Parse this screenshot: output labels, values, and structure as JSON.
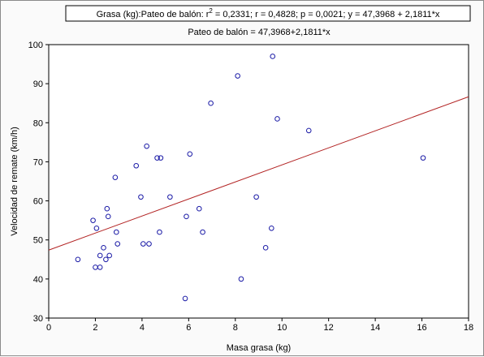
{
  "chart_data": {
    "type": "scatter",
    "legend_box": {
      "prefix": "Grasa (kg):Pateo de balón:  r",
      "sup": "2",
      "suffix": " = 0,2331;  r = 0,4828; p = 0,0021;  y = 47,3968 + 2,1811*x"
    },
    "title": "Pateo de balón = 47,3968+2,1811*x",
    "xlabel": "Masa grasa (kg)",
    "ylabel": "Velocidad de remate (km/h)",
    "xlim": [
      0,
      18
    ],
    "ylim": [
      30,
      100
    ],
    "xticks": [
      0,
      2,
      4,
      6,
      8,
      10,
      12,
      14,
      16,
      18
    ],
    "yticks": [
      30,
      40,
      50,
      60,
      70,
      80,
      90,
      100
    ],
    "grid": false,
    "regression": {
      "intercept": 47.3968,
      "slope": 2.1811
    },
    "colors": {
      "points": "#1a1aa6",
      "line": "#b22222",
      "axes": "#000000"
    },
    "points": [
      {
        "x": 1.25,
        "y": 45
      },
      {
        "x": 1.9,
        "y": 55
      },
      {
        "x": 2.0,
        "y": 43
      },
      {
        "x": 2.05,
        "y": 53
      },
      {
        "x": 2.2,
        "y": 46
      },
      {
        "x": 2.2,
        "y": 43
      },
      {
        "x": 2.35,
        "y": 48
      },
      {
        "x": 2.45,
        "y": 45
      },
      {
        "x": 2.5,
        "y": 58
      },
      {
        "x": 2.55,
        "y": 56
      },
      {
        "x": 2.6,
        "y": 46
      },
      {
        "x": 2.85,
        "y": 66
      },
      {
        "x": 2.9,
        "y": 52
      },
      {
        "x": 2.95,
        "y": 49
      },
      {
        "x": 3.75,
        "y": 69
      },
      {
        "x": 3.95,
        "y": 61
      },
      {
        "x": 4.05,
        "y": 49
      },
      {
        "x": 4.2,
        "y": 74
      },
      {
        "x": 4.3,
        "y": 49
      },
      {
        "x": 4.65,
        "y": 71
      },
      {
        "x": 4.75,
        "y": 52
      },
      {
        "x": 4.8,
        "y": 71
      },
      {
        "x": 5.2,
        "y": 61
      },
      {
        "x": 5.85,
        "y": 35
      },
      {
        "x": 5.9,
        "y": 56
      },
      {
        "x": 6.05,
        "y": 72
      },
      {
        "x": 6.45,
        "y": 58
      },
      {
        "x": 6.6,
        "y": 52
      },
      {
        "x": 6.95,
        "y": 85
      },
      {
        "x": 8.1,
        "y": 92
      },
      {
        "x": 8.25,
        "y": 40
      },
      {
        "x": 8.9,
        "y": 61
      },
      {
        "x": 9.3,
        "y": 48
      },
      {
        "x": 9.55,
        "y": 53
      },
      {
        "x": 9.6,
        "y": 97
      },
      {
        "x": 9.8,
        "y": 81
      },
      {
        "x": 11.15,
        "y": 78
      },
      {
        "x": 16.05,
        "y": 71
      }
    ]
  }
}
